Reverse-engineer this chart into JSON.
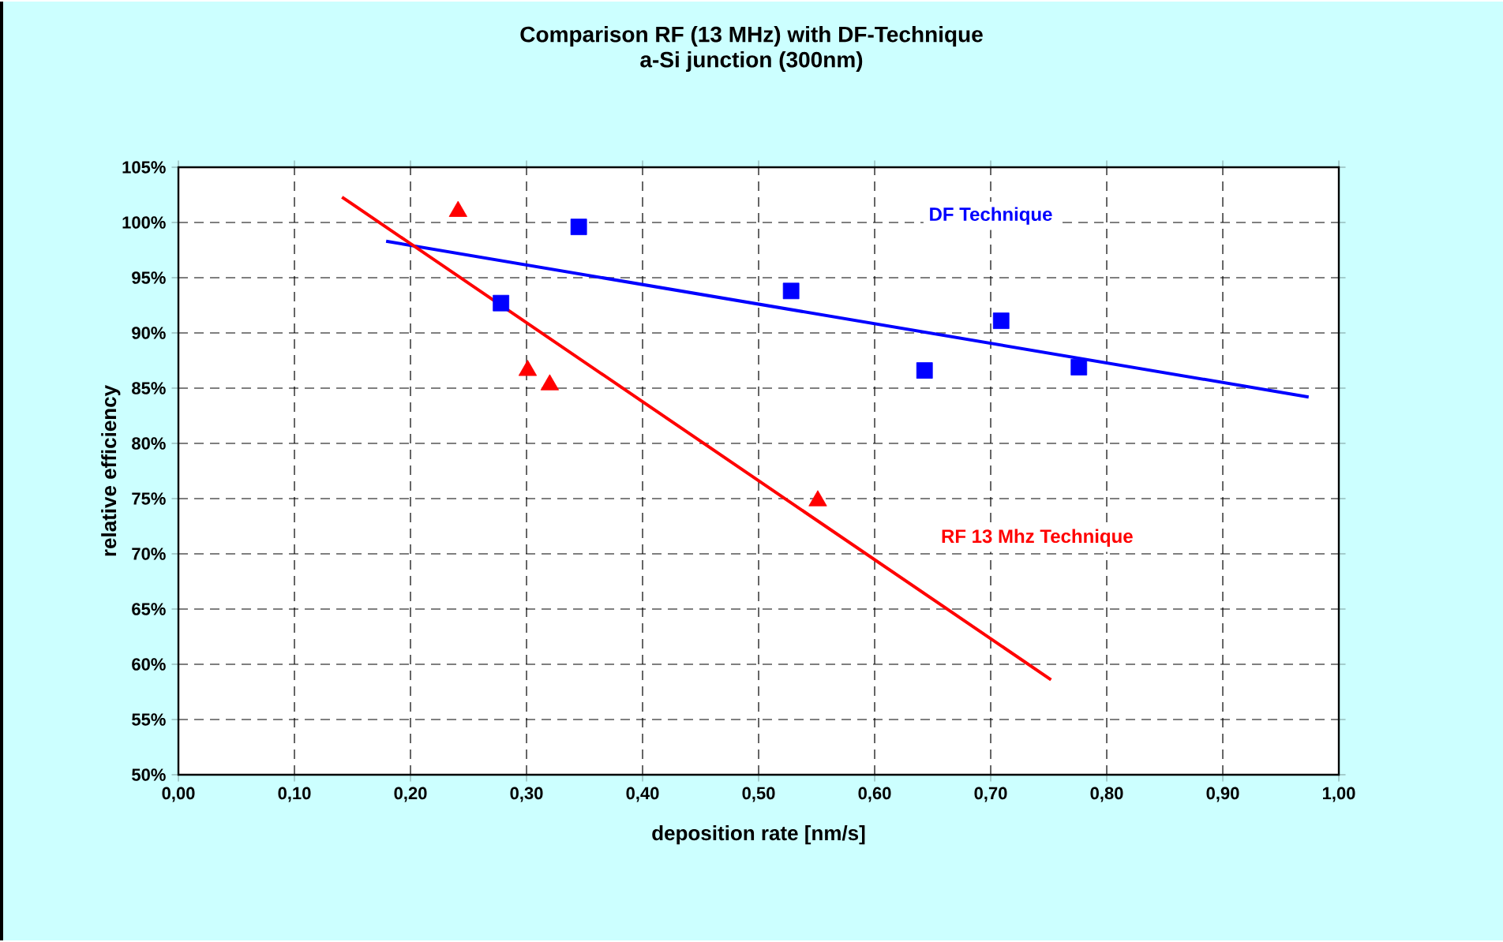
{
  "chart_data": {
    "type": "scatter",
    "title": "Comparison RF (13 MHz) with DF-Technique",
    "subtitle": "a-Si junction (300nm)",
    "xlabel": "deposition rate [nm/s]",
    "ylabel": "relative efficiency",
    "series": [
      {
        "name": "DF Technique",
        "marker": "square",
        "color": "#0000ff",
        "x": [
          0.278,
          0.345,
          0.528,
          0.643,
          0.709,
          0.776
        ],
        "values": [
          92.7,
          99.6,
          93.8,
          86.6,
          91.1,
          86.9
        ]
      },
      {
        "name": "RF 13 Mhz Technique",
        "marker": "triangle",
        "color": "#ff0000",
        "x": [
          0.241,
          0.301,
          0.32,
          0.551
        ],
        "values": [
          101.0,
          86.6,
          85.3,
          74.8
        ]
      },
      {
        "type": "line",
        "marker": "none",
        "color": "#0000ff",
        "x": [
          0.179,
          0.974
        ],
        "values": [
          98.3,
          84.2
        ]
      },
      {
        "type": "line",
        "marker": "none",
        "color": "#ff0000",
        "x": [
          0.141,
          0.752
        ],
        "values": [
          102.3,
          58.6
        ]
      }
    ],
    "xlim": [
      0,
      1
    ],
    "ylim": [
      50,
      105
    ],
    "xticks": [
      {
        "value": 0,
        "label": "0,00"
      },
      {
        "value": 0.1,
        "label": "0,10"
      },
      {
        "value": 0.2,
        "label": "0,20"
      },
      {
        "value": 0.3,
        "label": "0,30"
      },
      {
        "value": 0.4,
        "label": "0,40"
      },
      {
        "value": 0.5,
        "label": "0,50"
      },
      {
        "value": 0.6,
        "label": "0,60"
      },
      {
        "value": 0.7,
        "label": "0,70"
      },
      {
        "value": 0.8,
        "label": "0,80"
      },
      {
        "value": 0.9,
        "label": "0,90"
      },
      {
        "value": 1,
        "label": "1,00"
      }
    ],
    "yticks": [
      {
        "value": 50,
        "label": "50%"
      },
      {
        "value": 55,
        "label": "55%"
      },
      {
        "value": 60,
        "label": "60%"
      },
      {
        "value": 65,
        "label": "65%"
      },
      {
        "value": 70,
        "label": "70%"
      },
      {
        "value": 75,
        "label": "75%"
      },
      {
        "value": 80,
        "label": "80%"
      },
      {
        "value": 85,
        "label": "85%"
      },
      {
        "value": 90,
        "label": "90%"
      },
      {
        "value": 95,
        "label": "95%"
      },
      {
        "value": 100,
        "label": "100%"
      },
      {
        "value": 105,
        "label": "105%"
      }
    ],
    "grid": true,
    "legend": false
  }
}
